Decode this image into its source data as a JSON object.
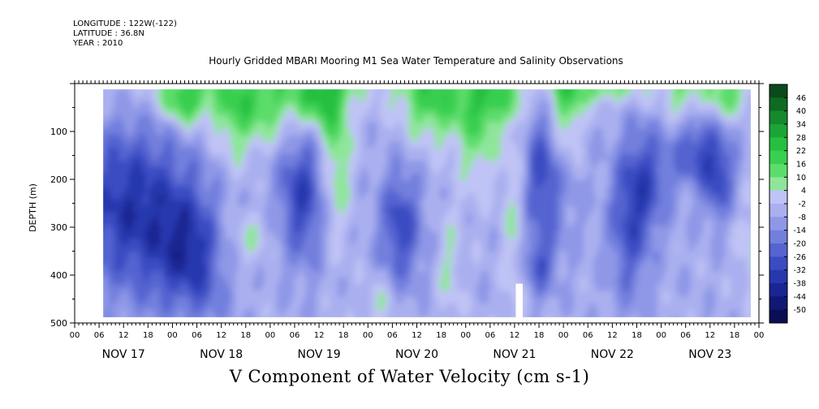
{
  "header": {
    "longitude": "LONGITUDE : 122W(-122)",
    "latitude": "LATITUDE : 36.8N",
    "year": "YEAR : 2010"
  },
  "chart_data": {
    "type": "heatmap",
    "title": "Hourly Gridded MBARI Mooring M1 Sea Water Temperature and Salinity Observations",
    "footer_title": "V Component of Water Velocity (cm s-1)",
    "ylabel": "DEPTH (m)",
    "ylim": [
      500,
      0
    ],
    "y_ticks": [
      100,
      200,
      300,
      400,
      500
    ],
    "x_hour_ticks": [
      "00",
      "06",
      "12",
      "18",
      "00",
      "06",
      "12",
      "18",
      "00",
      "06",
      "12",
      "18",
      "00",
      "06",
      "12",
      "18",
      "00",
      "06",
      "12",
      "18",
      "00",
      "06",
      "12",
      "18",
      "00",
      "06",
      "12",
      "18",
      "00"
    ],
    "x_day_labels": [
      "NOV 17",
      "NOV 18",
      "NOV 19",
      "NOV 20",
      "NOV 21",
      "NOV 22",
      "NOV 23"
    ],
    "data_extent": {
      "start_hours_after_nov17_00": 7,
      "end_hours_after_nov17_00": 166,
      "depth_top_m": 12,
      "depth_bottom_m": 488
    },
    "colorbar": {
      "levels": [
        "46",
        "40",
        "34",
        "28",
        "22",
        "16",
        "10",
        "4",
        "-2",
        "-8",
        "-14",
        "-20",
        "-26",
        "-32",
        "-38",
        "-44",
        "-50"
      ],
      "colors_high_to_low": [
        "#0b4a1a",
        "#0f6a22",
        "#15892c",
        "#1ba535",
        "#27bf40",
        "#39cf50",
        "#5cdc6a",
        "#8ee69a",
        "#bfc3f5",
        "#aab0ef",
        "#8f98e7",
        "#727fdd",
        "#5564d0",
        "#3b4cc2",
        "#2737ad",
        "#1a2592",
        "#101874",
        "#0a0f55"
      ]
    }
  }
}
